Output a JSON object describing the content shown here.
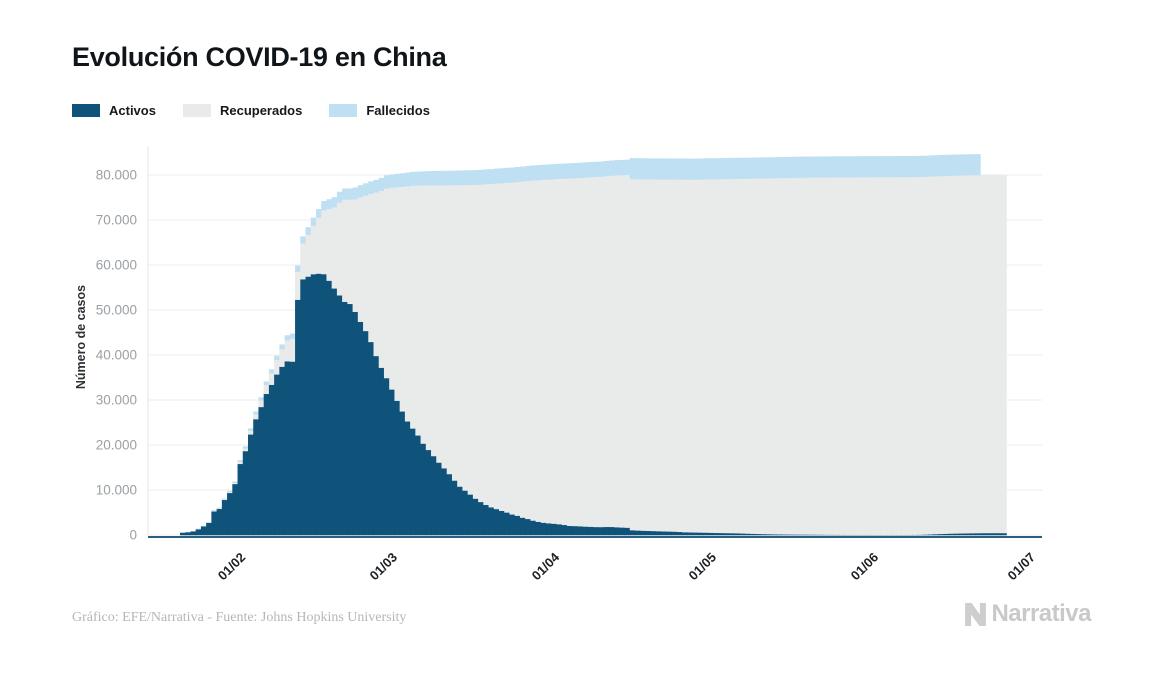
{
  "title": "Evolución COVID-19 en China",
  "legend": [
    {
      "label": "Activos",
      "color": "#0f537b"
    },
    {
      "label": "Recuperados",
      "color": "#e9eaea"
    },
    {
      "label": "Fallecidos",
      "color": "#bfe0f2"
    }
  ],
  "y_axis_title": "Número de casos",
  "footer": {
    "credit": "Gráfico: EFE/Narrativa - Fuente: Johns Hopkins University"
  },
  "logo": {
    "text": "Narrativa"
  },
  "chart_data": {
    "type": "bar",
    "stacked": true,
    "title": "Evolución COVID-19 en China",
    "xlabel": "",
    "ylabel": "Número de casos",
    "ylim": [
      0,
      88000
    ],
    "grid": true,
    "legend_position": "top-left",
    "date_start": "22/01/2020",
    "date_end": "27/06/2020",
    "frequency": "daily",
    "x_ticks": [
      {
        "index": 10,
        "label": "01/02"
      },
      {
        "index": 39,
        "label": "01/03"
      },
      {
        "index": 70,
        "label": "01/04"
      },
      {
        "index": 100,
        "label": "01/05"
      },
      {
        "index": 131,
        "label": "01/06"
      },
      {
        "index": 161,
        "label": "01/07"
      }
    ],
    "y_ticks": [
      {
        "value": 0,
        "label": "0"
      },
      {
        "value": 10000,
        "label": "10.000"
      },
      {
        "value": 20000,
        "label": "20.000"
      },
      {
        "value": 30000,
        "label": "30.000"
      },
      {
        "value": 40000,
        "label": "40.000"
      },
      {
        "value": 50000,
        "label": "50.000"
      },
      {
        "value": 60000,
        "label": "60.000"
      },
      {
        "value": 70000,
        "label": "70.000"
      },
      {
        "value": 80000,
        "label": "80.000"
      }
    ],
    "series": [
      {
        "name": "Activos",
        "color": "#0f537b",
        "values": [
          503,
          595,
          858,
          1325,
          1970,
          2737,
          5277,
          5834,
          7835,
          9375,
          11364,
          15830,
          18677,
          22373,
          25762,
          28477,
          31393,
          33413,
          35705,
          37424,
          38638,
          38560,
          52309,
          56860,
          57452,
          57992,
          58108,
          58002,
          56541,
          54825,
          53284,
          51859,
          51390,
          49631,
          47413,
          45365,
          42924,
          39809,
          37199,
          34898,
          32368,
          29864,
          27489,
          25282,
          23702,
          22159,
          20335,
          18933,
          17567,
          16116,
          14859,
          13569,
          12124,
          10783,
          9906,
          9030,
          8106,
          7372,
          6731,
          6189,
          5799,
          5410,
          5030,
          4603,
          4310,
          3881,
          3600,
          3236,
          2967,
          2764,
          2640,
          2545,
          2425,
          2267,
          2062,
          2020,
          1973,
          1905,
          1865,
          1810,
          1794,
          1835,
          1829,
          1761,
          1699,
          1656,
          1100,
          1034,
          991,
          959,
          915,
          880,
          838,
          816,
          778,
          723,
          650,
          619,
          599,
          580,
          557,
          531,
          504,
          481,
          460,
          441,
          420,
          382,
          339,
          305,
          273,
          244,
          220,
          198,
          179,
          163,
          150,
          141,
          133,
          127,
          120,
          113,
          105,
          97,
          90,
          84,
          79,
          75,
          72,
          70,
          69,
          68,
          66,
          64,
          63,
          62,
          61,
          63,
          66,
          70,
          78,
          95,
          128,
          172,
          221,
          268,
          307,
          340,
          367,
          391,
          411,
          428,
          441,
          452,
          459,
          463,
          460,
          452
        ]
      },
      {
        "name": "Recuperados",
        "color": "#e9eaea",
        "values": [
          28,
          30,
          36,
          39,
          49,
          58,
          101,
          120,
          135,
          214,
          268,
          439,
          614,
          843,
          1115,
          1477,
          1999,
          2596,
          3219,
          3918,
          4636,
          5082,
          6217,
          7977,
          9298,
          10755,
          12462,
          14206,
          15962,
          18014,
          20659,
          22699,
          23187,
          25015,
          27676,
          30084,
          32930,
          36329,
          39320,
          42162,
          44854,
          47450,
          49914,
          52240,
          53944,
          55539,
          57388,
          58804,
          60181,
          61644,
          62901,
          64196,
          65660,
          67017,
          67910,
          68798,
          69755,
          70535,
          71266,
          71857,
          72362,
          72814,
          73280,
          73773,
          74181,
          74720,
          75100,
          75582,
          75923,
          76206,
          76405,
          76565,
          76760,
          76946,
          77207,
          77310,
          77410,
          77567,
          77679,
          77791,
          77877,
          77956,
          78039,
          78200,
          78311,
          78401,
          78024,
          78062,
          78094,
          78109,
          78145,
          78171,
          78209,
          78229,
          78263,
          78311,
          78370,
          78392,
          78413,
          78440,
          78523,
          78560,
          78595,
          78634,
          78680,
          78726,
          78771,
          78817,
          78870,
          78928,
          78983,
          79030,
          79076,
          79122,
          79167,
          79208,
          79246,
          79281,
          79310,
          79332,
          79350,
          79366,
          79382,
          79398,
          79414,
          79428,
          79440,
          79451,
          79461,
          79470,
          79479,
          79484,
          79489,
          79493,
          79497,
          79501,
          79505,
          79509,
          79512,
          79515,
          79518,
          79520,
          79523,
          79526,
          79529,
          79532,
          79535,
          79538,
          79542,
          79546,
          79550,
          79554,
          79559,
          79565,
          79572,
          79580,
          79590,
          79602
        ]
      },
      {
        "name": "Fallecidos",
        "color": "#bfe0f2",
        "values": [
          17,
          18,
          26,
          42,
          56,
          82,
          131,
          133,
          171,
          213,
          259,
          361,
          425,
          491,
          563,
          633,
          718,
          805,
          905,
          1012,
          1112,
          1117,
          1369,
          1521,
          1663,
          1766,
          1864,
          2003,
          2116,
          2238,
          2345,
          2443,
          2445,
          2595,
          2665,
          2717,
          2746,
          2790,
          2837,
          2872,
          2914,
          2947,
          2983,
          3015,
          3044,
          3072,
          3100,
          3123,
          3139,
          3161,
          3172,
          3180,
          3193,
          3203,
          3217,
          3230,
          3241,
          3249,
          3253,
          3259,
          3274,
          3274,
          3281,
          3285,
          3291,
          3296,
          3299,
          3304,
          3308,
          3309,
          3316,
          3322,
          3326,
          3330,
          3333,
          3335,
          3335,
          3337,
          3339,
          3340,
          3343,
          3343,
          3345,
          3345,
          3346,
          3346,
          4636,
          4636,
          4636,
          4636,
          4636,
          4636,
          4636,
          4636,
          4636,
          4637,
          4637,
          4637,
          4637,
          4637,
          4637,
          4637,
          4637,
          4637,
          4637,
          4637,
          4637,
          4637,
          4637,
          4637,
          4637,
          4637,
          4637,
          4637,
          4637,
          4637,
          4638,
          4638,
          4638,
          4638,
          4638,
          4638,
          4638,
          4638,
          4638,
          4638,
          4638,
          4638,
          4638,
          4638,
          4638,
          4638,
          4638,
          4638,
          4638,
          4638,
          4638,
          4638,
          4638,
          4638,
          4638,
          4639,
          4639,
          4639,
          4639,
          4639,
          4640,
          4640,
          4640,
          4641,
          4641,
          4641,
          4641
        ]
      }
    ]
  }
}
